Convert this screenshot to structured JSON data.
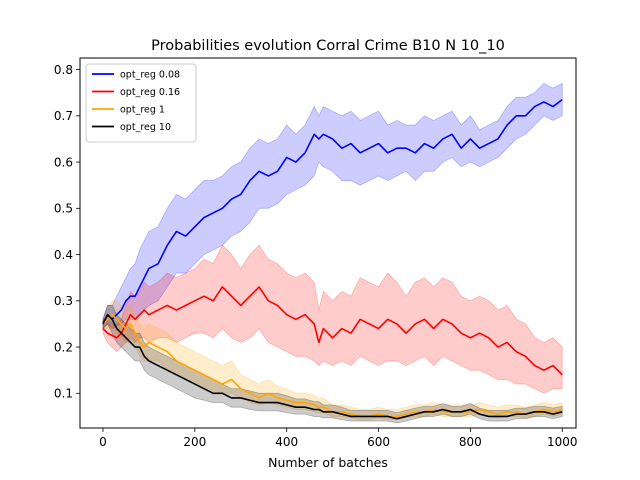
{
  "chart_data": {
    "type": "line",
    "title": "Probabilities evolution Corral Crime B10 N 10_10",
    "xlabel": "Number of batches",
    "ylabel": "",
    "xlim": [
      -50,
      1030
    ],
    "ylim": [
      0.025,
      0.825
    ],
    "xticks": [
      0,
      200,
      400,
      600,
      800,
      1000
    ],
    "yticks": [
      0.1,
      0.2,
      0.3,
      0.4,
      0.5,
      0.6,
      0.7,
      0.8
    ],
    "grid": false,
    "legend_position": "top-left",
    "series": [
      {
        "name": "opt_reg 0.08",
        "color": "#0000ff",
        "band_color": "#0000ff",
        "x": [
          0,
          10,
          20,
          30,
          40,
          50,
          60,
          70,
          80,
          90,
          100,
          120,
          140,
          160,
          180,
          200,
          220,
          240,
          260,
          280,
          300,
          320,
          340,
          360,
          380,
          400,
          420,
          440,
          460,
          470,
          480,
          500,
          520,
          540,
          560,
          580,
          600,
          620,
          640,
          660,
          680,
          700,
          720,
          740,
          760,
          780,
          800,
          820,
          840,
          860,
          880,
          900,
          920,
          940,
          960,
          980,
          1000
        ],
        "values": [
          0.25,
          0.27,
          0.26,
          0.27,
          0.28,
          0.3,
          0.31,
          0.31,
          0.33,
          0.35,
          0.37,
          0.38,
          0.42,
          0.45,
          0.44,
          0.46,
          0.48,
          0.49,
          0.5,
          0.52,
          0.53,
          0.56,
          0.58,
          0.57,
          0.58,
          0.61,
          0.6,
          0.62,
          0.66,
          0.65,
          0.66,
          0.65,
          0.63,
          0.64,
          0.62,
          0.63,
          0.64,
          0.62,
          0.63,
          0.63,
          0.62,
          0.64,
          0.63,
          0.65,
          0.66,
          0.63,
          0.65,
          0.63,
          0.64,
          0.65,
          0.68,
          0.7,
          0.7,
          0.72,
          0.73,
          0.72,
          0.735
        ],
        "lower": [
          0.24,
          0.25,
          0.24,
          0.245,
          0.25,
          0.26,
          0.26,
          0.26,
          0.27,
          0.28,
          0.29,
          0.3,
          0.33,
          0.36,
          0.36,
          0.38,
          0.4,
          0.41,
          0.42,
          0.44,
          0.45,
          0.47,
          0.5,
          0.5,
          0.51,
          0.53,
          0.54,
          0.55,
          0.57,
          0.6,
          0.59,
          0.58,
          0.56,
          0.56,
          0.55,
          0.56,
          0.57,
          0.56,
          0.57,
          0.58,
          0.56,
          0.58,
          0.58,
          0.6,
          0.61,
          0.59,
          0.6,
          0.59,
          0.6,
          0.61,
          0.63,
          0.65,
          0.66,
          0.68,
          0.7,
          0.69,
          0.7
        ],
        "upper": [
          0.26,
          0.29,
          0.29,
          0.31,
          0.33,
          0.35,
          0.37,
          0.38,
          0.41,
          0.43,
          0.45,
          0.46,
          0.5,
          0.53,
          0.52,
          0.54,
          0.56,
          0.56,
          0.57,
          0.59,
          0.6,
          0.63,
          0.65,
          0.64,
          0.65,
          0.68,
          0.66,
          0.68,
          0.72,
          0.7,
          0.72,
          0.71,
          0.7,
          0.71,
          0.69,
          0.7,
          0.71,
          0.68,
          0.69,
          0.68,
          0.68,
          0.7,
          0.69,
          0.7,
          0.71,
          0.68,
          0.7,
          0.67,
          0.68,
          0.69,
          0.72,
          0.74,
          0.74,
          0.75,
          0.77,
          0.76,
          0.77
        ]
      },
      {
        "name": "opt_reg 0.16",
        "color": "#ff0000",
        "band_color": "#ff0000",
        "x": [
          0,
          10,
          20,
          30,
          40,
          50,
          60,
          70,
          80,
          90,
          100,
          120,
          140,
          160,
          180,
          200,
          220,
          240,
          260,
          280,
          300,
          320,
          340,
          360,
          380,
          400,
          420,
          440,
          460,
          470,
          480,
          500,
          520,
          540,
          560,
          580,
          600,
          620,
          640,
          660,
          680,
          700,
          720,
          740,
          760,
          780,
          800,
          820,
          840,
          860,
          880,
          900,
          920,
          940,
          960,
          980,
          1000
        ],
        "values": [
          0.24,
          0.23,
          0.225,
          0.22,
          0.23,
          0.25,
          0.27,
          0.26,
          0.27,
          0.28,
          0.27,
          0.28,
          0.29,
          0.28,
          0.29,
          0.3,
          0.31,
          0.3,
          0.33,
          0.31,
          0.29,
          0.31,
          0.33,
          0.3,
          0.29,
          0.27,
          0.26,
          0.27,
          0.25,
          0.21,
          0.24,
          0.22,
          0.24,
          0.23,
          0.26,
          0.25,
          0.24,
          0.26,
          0.25,
          0.23,
          0.25,
          0.26,
          0.24,
          0.26,
          0.25,
          0.23,
          0.22,
          0.23,
          0.22,
          0.2,
          0.21,
          0.19,
          0.18,
          0.16,
          0.15,
          0.16,
          0.14
        ],
        "lower": [
          0.23,
          0.21,
          0.2,
          0.19,
          0.2,
          0.21,
          0.22,
          0.21,
          0.22,
          0.22,
          0.21,
          0.22,
          0.22,
          0.21,
          0.22,
          0.23,
          0.23,
          0.22,
          0.24,
          0.22,
          0.21,
          0.22,
          0.24,
          0.21,
          0.2,
          0.19,
          0.18,
          0.18,
          0.17,
          0.16,
          0.17,
          0.16,
          0.17,
          0.16,
          0.18,
          0.17,
          0.16,
          0.17,
          0.17,
          0.16,
          0.17,
          0.18,
          0.16,
          0.18,
          0.17,
          0.16,
          0.15,
          0.15,
          0.14,
          0.13,
          0.13,
          0.12,
          0.12,
          0.11,
          0.1,
          0.11,
          0.11
        ],
        "upper": [
          0.26,
          0.26,
          0.25,
          0.25,
          0.26,
          0.29,
          0.32,
          0.31,
          0.32,
          0.34,
          0.33,
          0.34,
          0.36,
          0.35,
          0.36,
          0.37,
          0.39,
          0.38,
          0.42,
          0.4,
          0.37,
          0.4,
          0.42,
          0.39,
          0.38,
          0.36,
          0.35,
          0.36,
          0.34,
          0.28,
          0.32,
          0.3,
          0.32,
          0.31,
          0.35,
          0.34,
          0.33,
          0.36,
          0.34,
          0.31,
          0.34,
          0.35,
          0.33,
          0.35,
          0.34,
          0.31,
          0.3,
          0.31,
          0.3,
          0.28,
          0.29,
          0.26,
          0.25,
          0.22,
          0.21,
          0.22,
          0.2
        ]
      },
      {
        "name": "opt_reg 1",
        "color": "#ffa500",
        "band_color": "#ffa500",
        "x": [
          0,
          10,
          20,
          30,
          40,
          50,
          60,
          70,
          80,
          90,
          100,
          120,
          140,
          160,
          180,
          200,
          220,
          240,
          260,
          280,
          300,
          320,
          340,
          360,
          380,
          400,
          420,
          440,
          460,
          470,
          480,
          500,
          520,
          540,
          560,
          580,
          600,
          620,
          640,
          660,
          680,
          700,
          720,
          740,
          760,
          780,
          800,
          820,
          840,
          860,
          880,
          900,
          920,
          940,
          960,
          980,
          1000
        ],
        "values": [
          0.25,
          0.26,
          0.27,
          0.26,
          0.25,
          0.24,
          0.25,
          0.23,
          0.21,
          0.2,
          0.21,
          0.2,
          0.19,
          0.17,
          0.16,
          0.15,
          0.14,
          0.13,
          0.12,
          0.13,
          0.11,
          0.1,
          0.09,
          0.1,
          0.09,
          0.085,
          0.08,
          0.08,
          0.075,
          0.07,
          0.07,
          0.06,
          0.06,
          0.055,
          0.05,
          0.05,
          0.055,
          0.05,
          0.05,
          0.055,
          0.06,
          0.06,
          0.065,
          0.06,
          0.06,
          0.06,
          0.06,
          0.065,
          0.06,
          0.055,
          0.06,
          0.06,
          0.055,
          0.06,
          0.065,
          0.06,
          0.065
        ],
        "lower": [
          0.24,
          0.24,
          0.24,
          0.23,
          0.22,
          0.21,
          0.21,
          0.2,
          0.18,
          0.17,
          0.17,
          0.17,
          0.15,
          0.14,
          0.13,
          0.12,
          0.11,
          0.1,
          0.1,
          0.1,
          0.09,
          0.08,
          0.075,
          0.08,
          0.075,
          0.07,
          0.065,
          0.065,
          0.06,
          0.058,
          0.058,
          0.05,
          0.05,
          0.047,
          0.043,
          0.043,
          0.047,
          0.043,
          0.043,
          0.047,
          0.05,
          0.05,
          0.055,
          0.05,
          0.05,
          0.05,
          0.05,
          0.055,
          0.05,
          0.047,
          0.05,
          0.05,
          0.047,
          0.05,
          0.055,
          0.05,
          0.055
        ],
        "upper": [
          0.26,
          0.28,
          0.3,
          0.3,
          0.29,
          0.28,
          0.29,
          0.27,
          0.25,
          0.24,
          0.25,
          0.24,
          0.23,
          0.21,
          0.2,
          0.19,
          0.18,
          0.17,
          0.16,
          0.17,
          0.14,
          0.13,
          0.12,
          0.13,
          0.115,
          0.11,
          0.1,
          0.1,
          0.095,
          0.09,
          0.09,
          0.075,
          0.075,
          0.07,
          0.065,
          0.065,
          0.07,
          0.065,
          0.065,
          0.07,
          0.075,
          0.075,
          0.08,
          0.075,
          0.075,
          0.075,
          0.075,
          0.08,
          0.075,
          0.07,
          0.075,
          0.075,
          0.07,
          0.075,
          0.08,
          0.075,
          0.08
        ]
      },
      {
        "name": "opt_reg 10",
        "color": "#000000",
        "band_color": "#000000",
        "x": [
          0,
          10,
          20,
          30,
          40,
          50,
          60,
          70,
          80,
          90,
          100,
          120,
          140,
          160,
          180,
          200,
          220,
          240,
          260,
          280,
          300,
          320,
          340,
          360,
          380,
          400,
          420,
          440,
          460,
          470,
          480,
          500,
          520,
          540,
          560,
          580,
          600,
          620,
          640,
          660,
          680,
          700,
          720,
          740,
          760,
          780,
          800,
          820,
          840,
          860,
          880,
          900,
          920,
          940,
          960,
          980,
          1000
        ],
        "values": [
          0.25,
          0.27,
          0.26,
          0.24,
          0.23,
          0.22,
          0.21,
          0.2,
          0.2,
          0.18,
          0.17,
          0.16,
          0.15,
          0.14,
          0.13,
          0.12,
          0.11,
          0.1,
          0.1,
          0.09,
          0.09,
          0.085,
          0.08,
          0.08,
          0.08,
          0.075,
          0.07,
          0.07,
          0.065,
          0.065,
          0.06,
          0.06,
          0.055,
          0.05,
          0.05,
          0.05,
          0.05,
          0.05,
          0.045,
          0.05,
          0.055,
          0.06,
          0.06,
          0.065,
          0.06,
          0.06,
          0.065,
          0.055,
          0.05,
          0.05,
          0.05,
          0.055,
          0.055,
          0.06,
          0.06,
          0.055,
          0.06
        ],
        "lower": [
          0.24,
          0.25,
          0.23,
          0.21,
          0.2,
          0.19,
          0.18,
          0.17,
          0.17,
          0.15,
          0.14,
          0.13,
          0.12,
          0.11,
          0.1,
          0.09,
          0.085,
          0.08,
          0.08,
          0.07,
          0.07,
          0.065,
          0.062,
          0.062,
          0.062,
          0.058,
          0.055,
          0.055,
          0.05,
          0.05,
          0.047,
          0.047,
          0.043,
          0.04,
          0.04,
          0.04,
          0.04,
          0.04,
          0.036,
          0.04,
          0.045,
          0.05,
          0.05,
          0.055,
          0.05,
          0.05,
          0.055,
          0.045,
          0.04,
          0.04,
          0.04,
          0.045,
          0.045,
          0.05,
          0.05,
          0.045,
          0.05
        ],
        "upper": [
          0.26,
          0.29,
          0.29,
          0.27,
          0.26,
          0.25,
          0.24,
          0.23,
          0.23,
          0.21,
          0.2,
          0.19,
          0.18,
          0.17,
          0.16,
          0.15,
          0.14,
          0.13,
          0.12,
          0.11,
          0.11,
          0.105,
          0.1,
          0.1,
          0.1,
          0.095,
          0.088,
          0.088,
          0.082,
          0.082,
          0.075,
          0.075,
          0.07,
          0.063,
          0.063,
          0.063,
          0.063,
          0.063,
          0.058,
          0.063,
          0.068,
          0.072,
          0.072,
          0.078,
          0.072,
          0.072,
          0.078,
          0.068,
          0.063,
          0.063,
          0.063,
          0.068,
          0.068,
          0.072,
          0.072,
          0.068,
          0.072
        ]
      }
    ]
  }
}
